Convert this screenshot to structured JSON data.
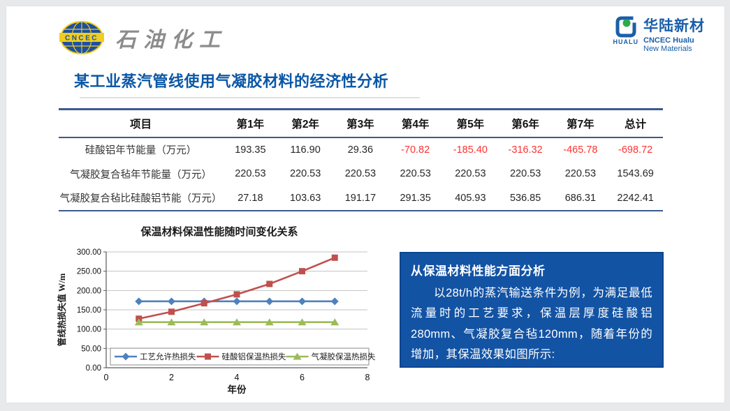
{
  "header": {
    "left_logo": {
      "badge": "CNCEC",
      "title": "石油化工"
    },
    "right_logo": {
      "icon_text": "HUALU",
      "name_cn": "华陆新材",
      "name_en_1": "CNCEC Hualu",
      "name_en_2": "New Materials"
    }
  },
  "page_title": "某工业蒸汽管线使用气凝胶材料的经济性分析",
  "table": {
    "headers": [
      "项目",
      "第1年",
      "第2年",
      "第3年",
      "第4年",
      "第5年",
      "第6年",
      "第7年",
      "总计"
    ],
    "rows": [
      {
        "label": "硅酸铝年节能量（万元）",
        "values": [
          "193.35",
          "116.90",
          "29.36",
          "-70.82",
          "-185.40",
          "-316.32",
          "-465.78",
          "-698.72"
        ]
      },
      {
        "label": "气凝胶复合毡年节能量（万元）",
        "values": [
          "220.53",
          "220.53",
          "220.53",
          "220.53",
          "220.53",
          "220.53",
          "220.53",
          "1543.69"
        ]
      },
      {
        "label": "气凝胶复合毡比硅酸铝节能（万元）",
        "values": [
          "27.18",
          "103.63",
          "191.17",
          "291.35",
          "405.93",
          "536.85",
          "686.31",
          "2242.41"
        ]
      }
    ],
    "negative_color": "#ff3232"
  },
  "chart_data": {
    "type": "line",
    "title": "保温材料保温性能随时间变化关系",
    "xlabel": "年份",
    "ylabel": "管线热损失值 W/m",
    "x": [
      1,
      2,
      3,
      4,
      5,
      6,
      7
    ],
    "xlim": [
      0,
      8
    ],
    "xticks": [
      0,
      2,
      4,
      6,
      8
    ],
    "ylim": [
      0,
      300
    ],
    "ytick_step": 50,
    "grid": true,
    "legend_position": "bottom-inside",
    "series": [
      {
        "name": "工艺允许热损失",
        "color": "#4F81BD",
        "marker": "diamond",
        "values": [
          172,
          172,
          172,
          172,
          172,
          172,
          172
        ]
      },
      {
        "name": "硅酸铝保温热损失",
        "color": "#C0504D",
        "marker": "square",
        "values": [
          127,
          145,
          167,
          190,
          217,
          250,
          285
        ]
      },
      {
        "name": "气凝胶保温热损失",
        "color": "#9BBB59",
        "marker": "triangle",
        "values": [
          118,
          118,
          118,
          118,
          118,
          118,
          118
        ]
      }
    ]
  },
  "analysis_box": {
    "title": "从保温材料性能方面分析",
    "body": "以28t/h的蒸汽输送条件为例，为满足最低流量时的工艺要求，保温层厚度硅酸铝280mm、气凝胶复合毡120mm，随着年份的增加，其保温效果如图所示:",
    "bg_color": "#1353a4"
  }
}
